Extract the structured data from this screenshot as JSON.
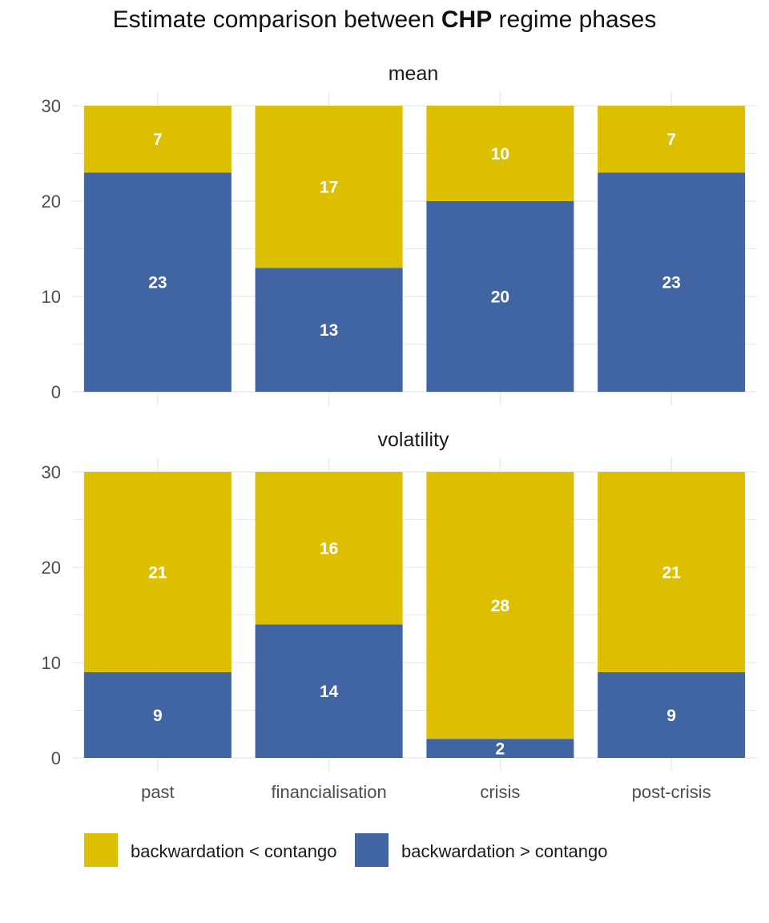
{
  "title": {
    "prefix": "Estimate comparison between ",
    "highlight": "CHP",
    "suffix": " regime phases"
  },
  "colors": {
    "backwardation_lt_contango": "#dcc000",
    "backwardation_gt_contango": "#4164a3",
    "grid": "#ebebeb",
    "axis_text": "#4d4d4d",
    "label_text": "#ffffff"
  },
  "chart_data": [
    {
      "type": "bar",
      "stacked": true,
      "panel": "mean",
      "categories": [
        "past",
        "financialisation",
        "crisis",
        "post-crisis"
      ],
      "series": [
        {
          "name": "backwardation > contango",
          "values": [
            23,
            13,
            20,
            23
          ]
        },
        {
          "name": "backwardation < contango",
          "values": [
            7,
            17,
            10,
            7
          ]
        }
      ],
      "ylim": [
        0,
        30
      ],
      "yticks": [
        0,
        10,
        20,
        30
      ],
      "grid": true
    },
    {
      "type": "bar",
      "stacked": true,
      "panel": "volatility",
      "categories": [
        "past",
        "financialisation",
        "crisis",
        "post-crisis"
      ],
      "series": [
        {
          "name": "backwardation > contango",
          "values": [
            9,
            14,
            2,
            9
          ]
        },
        {
          "name": "backwardation < contango",
          "values": [
            21,
            16,
            28,
            21
          ]
        }
      ],
      "ylim": [
        0,
        30
      ],
      "yticks": [
        0,
        10,
        20,
        30
      ],
      "grid": true
    }
  ],
  "legend": {
    "position": "bottom",
    "items": [
      {
        "label": "backwardation < contango",
        "color_key": "backwardation_lt_contango"
      },
      {
        "label": "backwardation > contango",
        "color_key": "backwardation_gt_contango"
      }
    ]
  }
}
